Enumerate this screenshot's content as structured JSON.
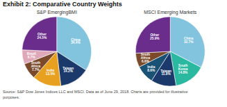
{
  "chart_data": [
    {
      "type": "pie",
      "title": "Exhibit 2: Comparative Country Weights",
      "subtitle": "S&P EmergingBMI",
      "categories": [
        "China",
        "Taiwan",
        "India",
        "South\nAfrica",
        "Brazil",
        "Other"
      ],
      "values": [
        34.4,
        14.2,
        13.5,
        7.7,
        6.7,
        24.5
      ],
      "value_labels": [
        "34.4%",
        "14.2%",
        "13.5%",
        "7.7%",
        "6.7%",
        "24.5%"
      ],
      "colors": [
        "#82c4de",
        "#1b3a6b",
        "#e8a020",
        "#7a4a2a",
        "#dfa8b8",
        "#6b2d8b"
      ],
      "data_labels": true,
      "annotations": [
        "Source: S&P Dow Jones Indices LLC and MSCI. Data as of June 29, 2018. Charts are provided for illustrative\npurposes."
      ]
    },
    {
      "type": "pie",
      "subtitle": "MSCI Emerging Markets",
      "categories": [
        "China",
        "South\nKorea",
        "Taiwan",
        "India",
        "South\nAfrica",
        "Other"
      ],
      "values": [
        32.7,
        14.8,
        11.8,
        8.6,
        6.6,
        25.9
      ],
      "value_labels": [
        "32.7%",
        "14.8%",
        "11.8%",
        "8.6%",
        "6.6%",
        "25.9%"
      ],
      "colors": [
        "#82c4de",
        "#2ab8a0",
        "#1b3a6b",
        "#1a5276",
        "#7a4a2a",
        "#6b2d8b"
      ],
      "data_labels": true
    }
  ]
}
